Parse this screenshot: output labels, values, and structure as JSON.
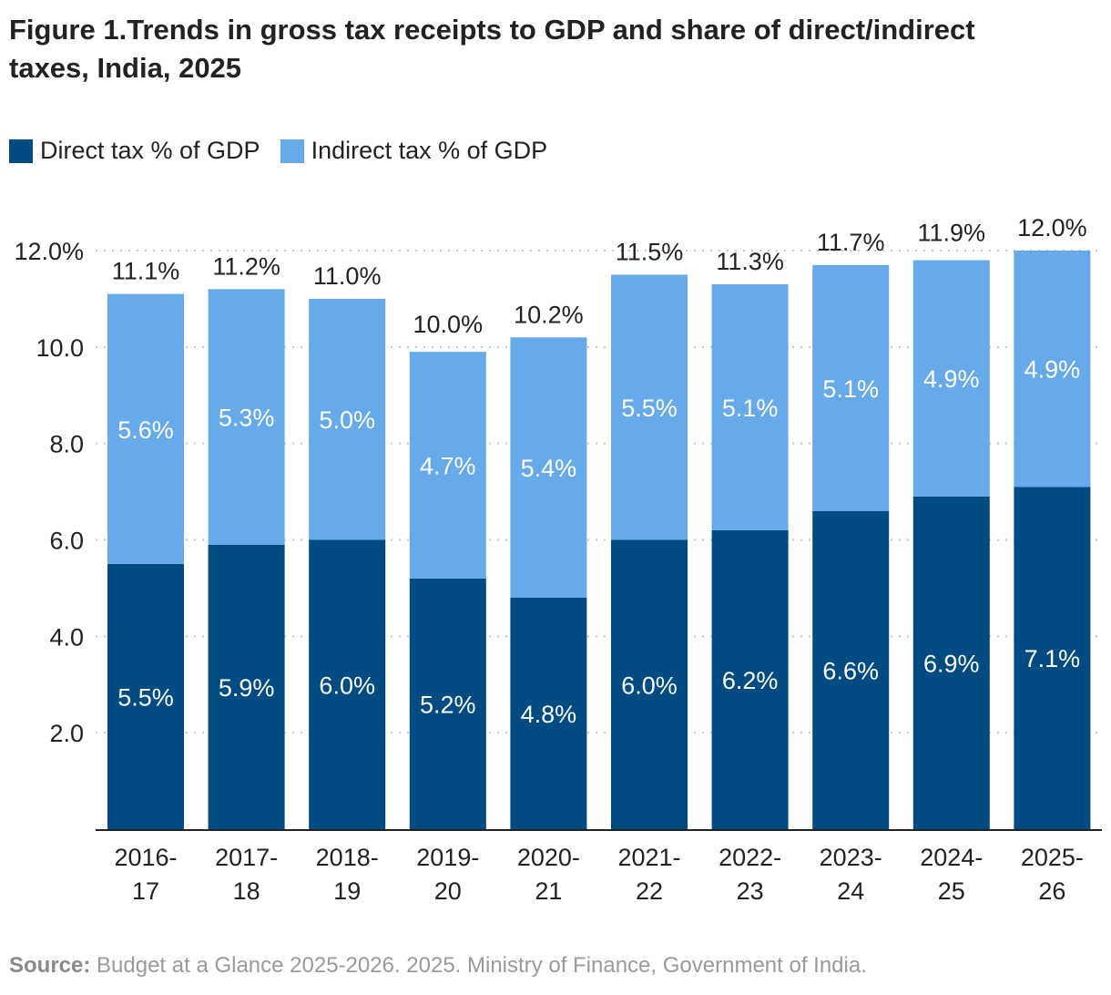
{
  "chart_data": {
    "type": "bar",
    "stacked": true,
    "title": "Figure 1.Trends in gross tax receipts to GDP and share of direct/indirect taxes, India, 2025",
    "categories": [
      [
        "2016-",
        "17"
      ],
      [
        "2017-",
        "18"
      ],
      [
        "2018-",
        "19"
      ],
      [
        "2019-",
        "20"
      ],
      [
        "2020-",
        "21"
      ],
      [
        "2021-",
        "22"
      ],
      [
        "2022-",
        "23"
      ],
      [
        "2023-",
        "24"
      ],
      [
        "2024-",
        "25"
      ],
      [
        "2025-",
        "26"
      ]
    ],
    "series": [
      {
        "name": "Direct tax % of GDP",
        "color": "#004b82",
        "values": [
          5.5,
          5.9,
          6.0,
          5.2,
          4.8,
          6.0,
          6.2,
          6.6,
          6.9,
          7.1
        ]
      },
      {
        "name": "Indirect tax % of GDP",
        "color": "#67aaea",
        "values": [
          5.6,
          5.3,
          5.0,
          4.7,
          5.4,
          5.5,
          5.1,
          5.1,
          4.9,
          4.9
        ]
      }
    ],
    "totals": [
      11.1,
      11.2,
      11.0,
      10.0,
      10.2,
      11.5,
      11.3,
      11.7,
      11.9,
      12.0
    ],
    "yticks": [
      "2.0",
      "4.0",
      "6.0",
      "8.0",
      "10.0",
      "12.0%"
    ],
    "ytick_values": [
      2,
      4,
      6,
      8,
      10,
      12
    ],
    "ylim": [
      0,
      12
    ],
    "grid": true,
    "legend": "top-left",
    "xlabel": "",
    "ylabel": ""
  },
  "source": {
    "label": "Source:",
    "text": " Budget at a Glance 2025-2026. 2025. Ministry of Finance, Government of India."
  }
}
